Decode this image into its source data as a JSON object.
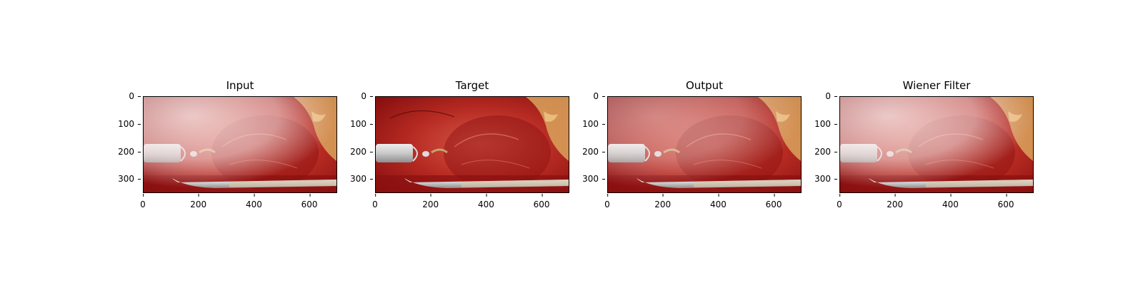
{
  "figure": {
    "panels": [
      {
        "title": "Input",
        "variant": "haze"
      },
      {
        "title": "Target",
        "variant": "clear"
      },
      {
        "title": "Output",
        "variant": "partial"
      },
      {
        "title": "Wiener Filter",
        "variant": "haze"
      }
    ],
    "y_ticks": [
      "0",
      "100",
      "200",
      "300"
    ],
    "x_ticks": [
      "0",
      "200",
      "400",
      "600"
    ],
    "colors": {
      "tissue_dark": "#8a1010",
      "tissue_mid": "#b52a22",
      "tissue_light": "#d9574a",
      "fat": "#d9a35c",
      "instrument": "#c9c9c9",
      "haze": "#f3dede"
    }
  }
}
